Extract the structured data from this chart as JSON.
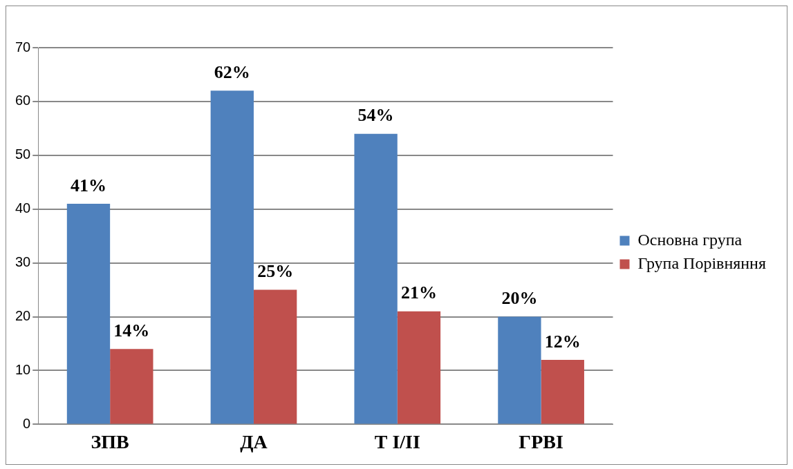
{
  "chart_data": {
    "type": "bar",
    "categories": [
      "ЗПВ",
      "ДА",
      "Т І/ІІ",
      "ГРВІ"
    ],
    "series": [
      {
        "name": "Основна група",
        "color": "#4f81bd",
        "values": [
          41,
          62,
          54,
          20
        ],
        "value_labels": [
          "41%",
          "62%",
          "54%",
          "20%"
        ]
      },
      {
        "name": "Група Порівняння",
        "color": "#c0504d",
        "values": [
          14,
          25,
          21,
          12
        ],
        "value_labels": [
          "14%",
          "25%",
          "21%",
          "12%"
        ]
      }
    ],
    "ylim": [
      0,
      70
    ],
    "yticks": [
      0,
      10,
      20,
      30,
      40,
      50,
      60,
      70
    ],
    "grid": "y",
    "legend": "right"
  }
}
